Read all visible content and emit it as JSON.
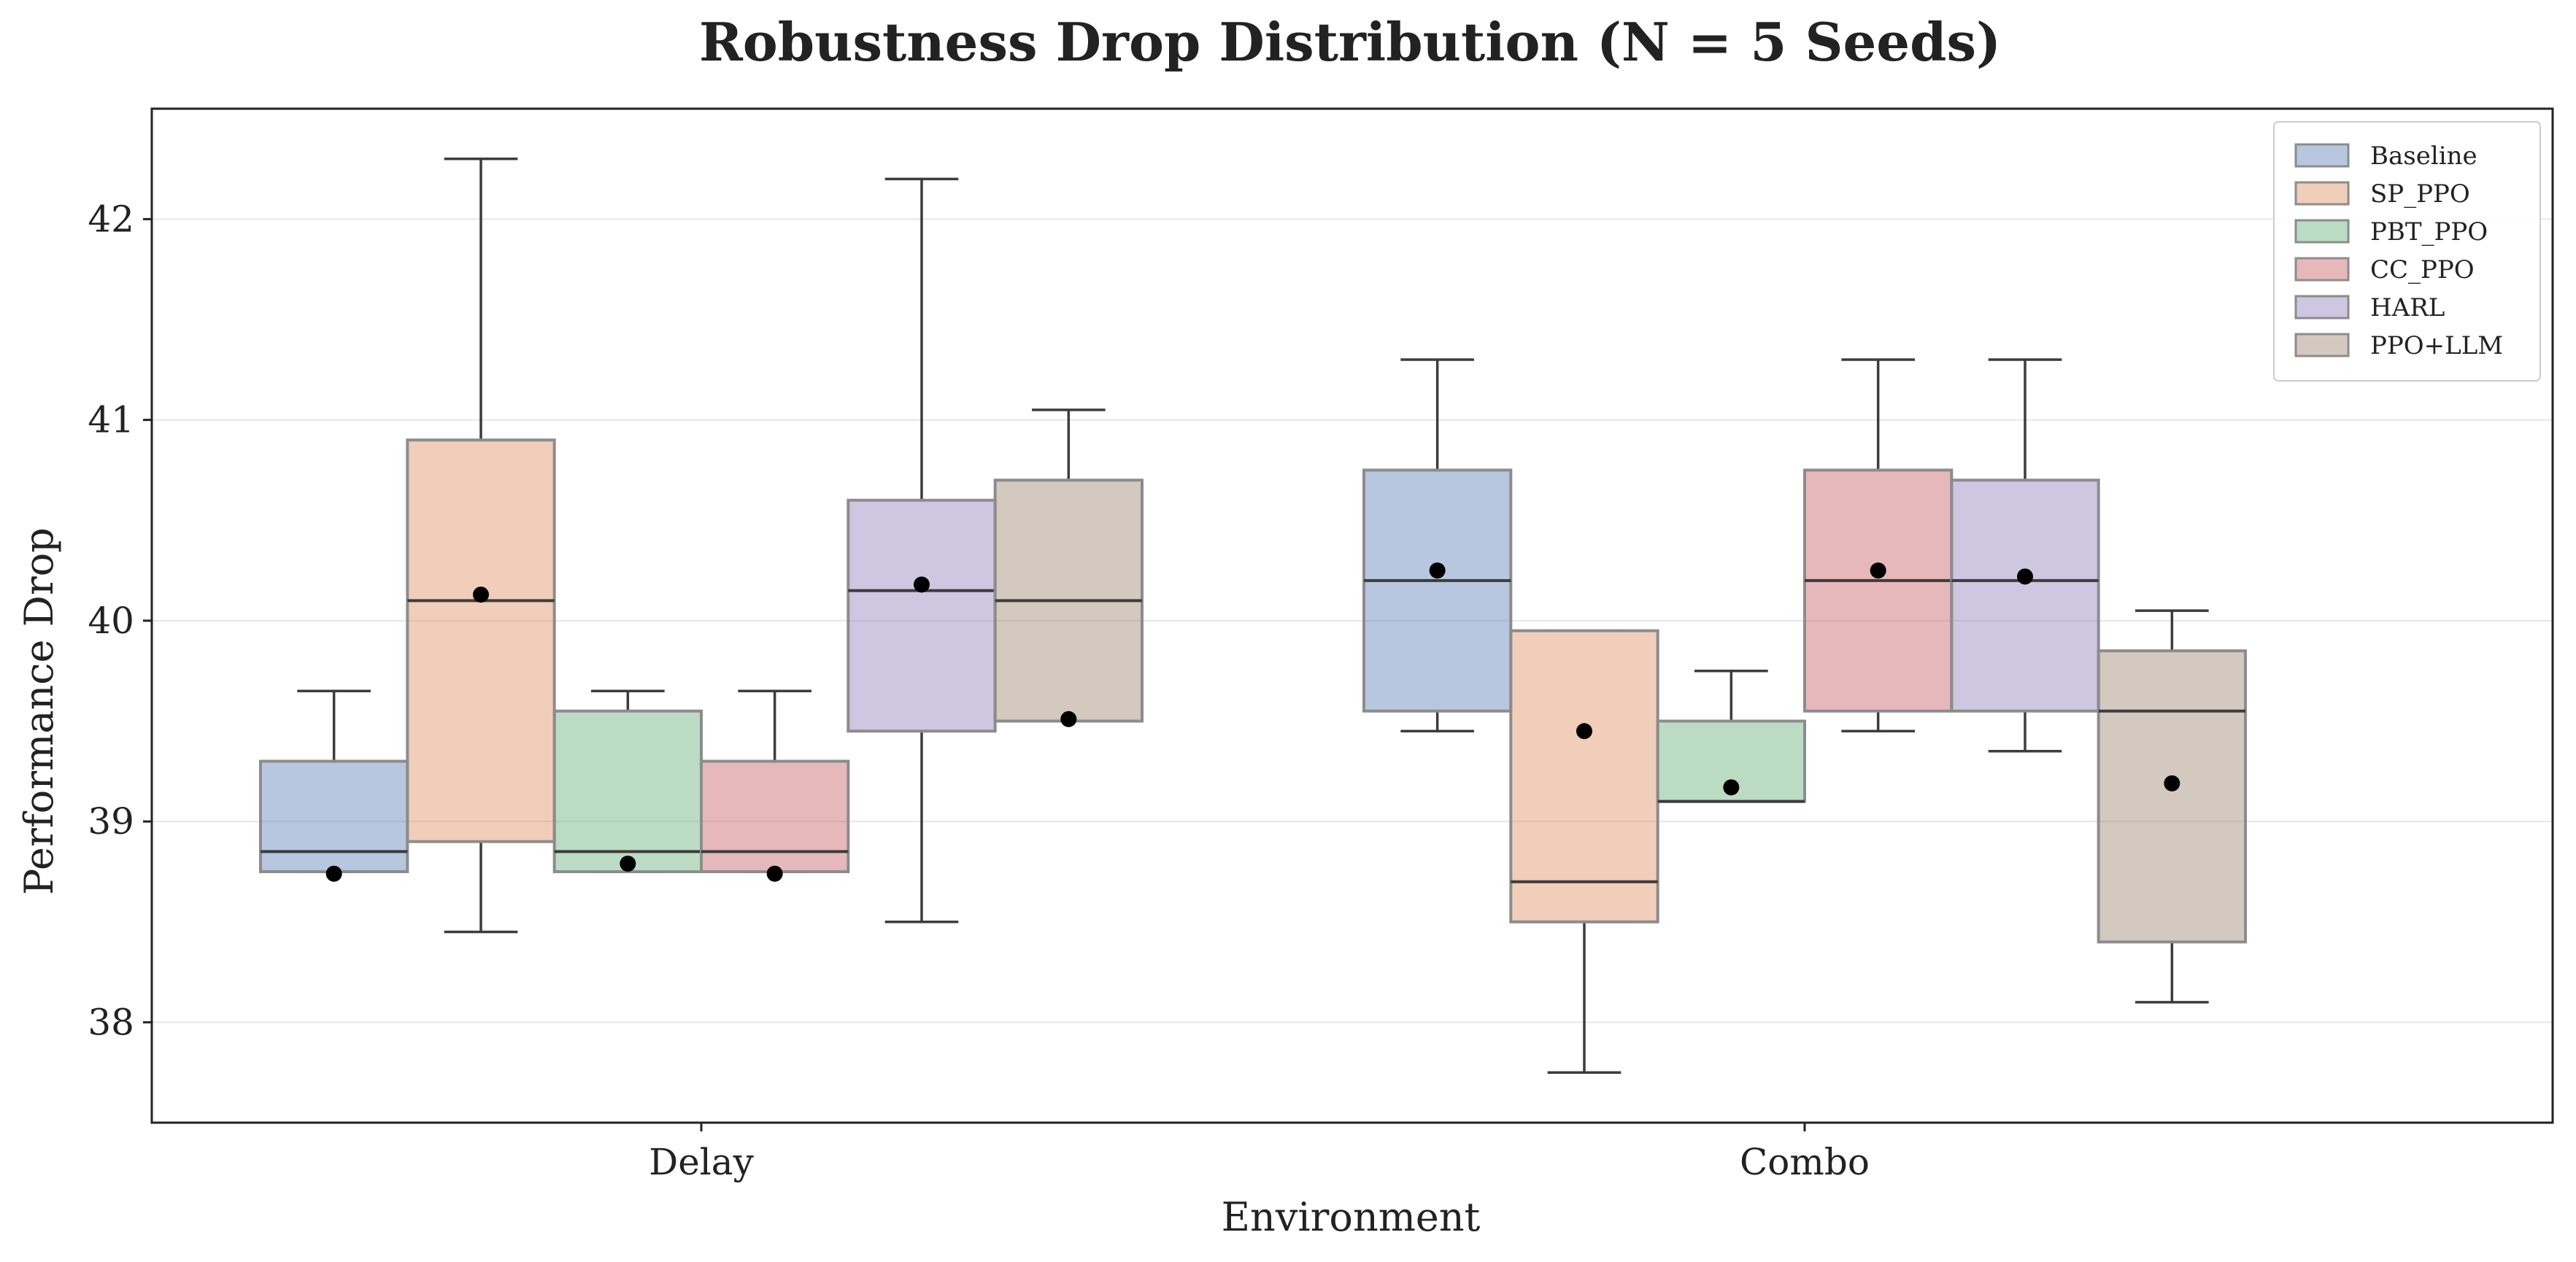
{
  "chart_data": {
    "type": "boxplot",
    "title": "Robustness Drop Distribution (N = 5 Seeds)",
    "xlabel": "Environment",
    "ylabel": "Performance Drop",
    "categories": [
      "Delay",
      "Combo"
    ],
    "ylim": [
      37.5,
      42.55
    ],
    "yticks": [
      38,
      39,
      40,
      41,
      42
    ],
    "grid": true,
    "legend_position": "top-right",
    "series": [
      {
        "name": "Baseline",
        "color": "#4c72b0",
        "boxes": [
          {
            "category": "Delay",
            "whisker_low": 38.75,
            "q1": 38.75,
            "median": 38.85,
            "q3": 39.3,
            "whisker_high": 39.65,
            "mean": 38.74
          },
          {
            "category": "Combo",
            "whisker_low": 39.45,
            "q1": 39.55,
            "median": 40.2,
            "q3": 40.75,
            "whisker_high": 41.3,
            "mean": 40.25
          }
        ]
      },
      {
        "name": "SP_PPO",
        "color": "#dd8452",
        "boxes": [
          {
            "category": "Delay",
            "whisker_low": 38.45,
            "q1": 38.9,
            "median": 40.1,
            "q3": 40.9,
            "whisker_high": 42.3,
            "mean": 40.13
          },
          {
            "category": "Combo",
            "whisker_low": 37.75,
            "q1": 38.5,
            "median": 38.7,
            "q3": 39.95,
            "whisker_high": 39.95,
            "mean": 39.45
          }
        ]
      },
      {
        "name": "PBT_PPO",
        "color": "#55a868",
        "boxes": [
          {
            "category": "Delay",
            "whisker_low": 38.75,
            "q1": 38.75,
            "median": 38.85,
            "q3": 39.55,
            "whisker_high": 39.65,
            "mean": 38.79
          },
          {
            "category": "Combo",
            "whisker_low": 39.1,
            "q1": 39.1,
            "median": 39.1,
            "q3": 39.5,
            "whisker_high": 39.75,
            "mean": 39.17
          }
        ]
      },
      {
        "name": "CC_PPO",
        "color": "#c44e52",
        "boxes": [
          {
            "category": "Delay",
            "whisker_low": 38.75,
            "q1": 38.75,
            "median": 38.85,
            "q3": 39.3,
            "whisker_high": 39.65,
            "mean": 38.74
          },
          {
            "category": "Combo",
            "whisker_low": 39.45,
            "q1": 39.55,
            "median": 40.2,
            "q3": 40.75,
            "whisker_high": 41.3,
            "mean": 40.25
          }
        ]
      },
      {
        "name": "HARL",
        "color": "#8172b3",
        "boxes": [
          {
            "category": "Delay",
            "whisker_low": 38.5,
            "q1": 39.45,
            "median": 40.15,
            "q3": 40.6,
            "whisker_high": 42.2,
            "mean": 40.18
          },
          {
            "category": "Combo",
            "whisker_low": 39.35,
            "q1": 39.55,
            "median": 40.2,
            "q3": 40.7,
            "whisker_high": 41.3,
            "mean": 40.22
          }
        ]
      },
      {
        "name": "PPO+LLM",
        "color": "#937860",
        "boxes": [
          {
            "category": "Delay",
            "whisker_low": 39.5,
            "q1": 39.5,
            "median": 40.1,
            "q3": 40.7,
            "whisker_high": 41.05,
            "mean": 39.51
          },
          {
            "category": "Combo",
            "whisker_low": 38.1,
            "q1": 38.4,
            "median": 39.55,
            "q3": 39.85,
            "whisker_high": 40.05,
            "mean": 39.19
          }
        ]
      }
    ]
  }
}
